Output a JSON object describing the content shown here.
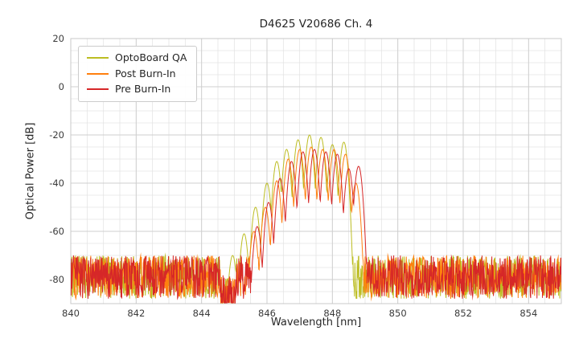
{
  "chart_data": {
    "type": "line",
    "title": "D4625 V20686 Ch. 4",
    "xlabel": "Wavelength [nm]",
    "ylabel": "Optical Power [dB]",
    "xlim": [
      840,
      855
    ],
    "ylim": [
      -90,
      20
    ],
    "xticks": [
      840,
      842,
      844,
      846,
      848,
      850,
      852,
      854
    ],
    "yticks": [
      20,
      0,
      -20,
      -40,
      -60,
      -80
    ],
    "minor_grid_step_x": 0.5,
    "minor_grid_step_y": 5,
    "grid": true,
    "legend_position": "upper left",
    "noise": {
      "min": -88,
      "max": -70,
      "quiet_zone": {
        "x": [
          844.58,
          845.05
        ],
        "offset": -8
      },
      "sample_step": 0.012
    },
    "mode_shape": {
      "half_spacing": 0.175,
      "valley_drop": 22
    },
    "series": [
      {
        "name": "OptoBoard QA",
        "color": "#bcbd22",
        "peaks": [
          [
            844.95,
            -70
          ],
          [
            845.3,
            -61
          ],
          [
            845.65,
            -50
          ],
          [
            846.0,
            -40
          ],
          [
            846.3,
            -31
          ],
          [
            846.6,
            -26
          ],
          [
            846.95,
            -22
          ],
          [
            847.3,
            -20
          ],
          [
            847.65,
            -21
          ],
          [
            848.0,
            -24
          ],
          [
            848.35,
            -23
          ]
        ]
      },
      {
        "name": "Post Burn-In",
        "color": "#ff7f0e",
        "peaks": [
          [
            845.6,
            -60
          ],
          [
            845.95,
            -50
          ],
          [
            846.3,
            -39
          ],
          [
            846.65,
            -30
          ],
          [
            847.0,
            -26
          ],
          [
            847.35,
            -25
          ],
          [
            847.7,
            -26
          ],
          [
            848.05,
            -26
          ],
          [
            848.4,
            -28
          ],
          [
            848.72,
            -40
          ]
        ]
      },
      {
        "name": "Pre Burn-In",
        "color": "#d62728",
        "peaks": [
          [
            845.7,
            -58
          ],
          [
            846.05,
            -48
          ],
          [
            846.4,
            -38
          ],
          [
            846.75,
            -31
          ],
          [
            847.1,
            -27
          ],
          [
            847.45,
            -26
          ],
          [
            847.8,
            -27
          ],
          [
            848.15,
            -28
          ],
          [
            848.5,
            -34
          ],
          [
            848.8,
            -33
          ]
        ]
      }
    ]
  }
}
